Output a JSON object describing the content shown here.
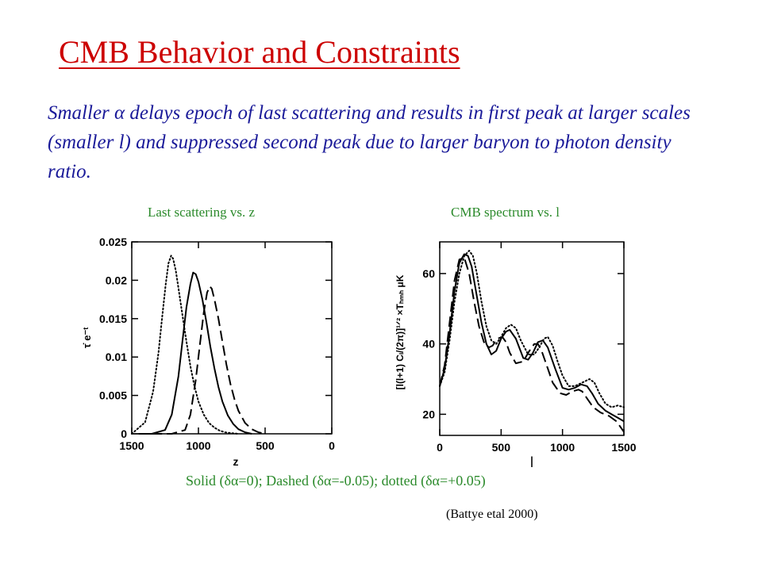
{
  "slide": {
    "title": "CMB Behavior and Constraints",
    "paragraph": "Smaller α delays epoch of last scattering and results in first peak at larger scales (smaller l) and suppressed second peak due to larger baryon to photon density ratio.",
    "caption_left": "Last scattering vs. z",
    "caption_right": "CMB spectrum vs. l",
    "legend_text": "Solid (δα=0); Dashed (δα=-0.05); dotted (δα=+0.05)",
    "source": "(Battye etal 2000)"
  },
  "chart_data": [
    {
      "type": "line",
      "title": "",
      "xlabel": "z",
      "ylabel": "τ̇ e⁻ᵗ",
      "xlim": [
        1500,
        0
      ],
      "ylim": [
        0,
        0.025
      ],
      "xticks": [
        "1500",
        "1000",
        "500",
        "0"
      ],
      "yticks": [
        "0",
        "0.005",
        "0.01",
        "0.015",
        "0.02",
        "0.025"
      ],
      "series": [
        {
          "style": "solid",
          "x": [
            1450,
            1350,
            1250,
            1200,
            1150,
            1120,
            1090,
            1060,
            1040,
            1020,
            1000,
            970,
            940,
            910,
            880,
            850,
            820,
            780,
            740,
            700,
            650,
            600
          ],
          "y": [
            0,
            0,
            0.0005,
            0.0025,
            0.0075,
            0.012,
            0.0165,
            0.0195,
            0.021,
            0.0208,
            0.0198,
            0.0175,
            0.0145,
            0.0113,
            0.0085,
            0.0061,
            0.0042,
            0.0024,
            0.0013,
            0.0006,
            0.0002,
            0
          ]
        },
        {
          "style": "dashed",
          "x": [
            1350,
            1200,
            1100,
            1060,
            1020,
            990,
            960,
            935,
            915,
            900,
            880,
            850,
            820,
            790,
            760,
            730,
            700,
            650,
            600,
            550,
            500
          ],
          "y": [
            0,
            0,
            0.0005,
            0.0025,
            0.007,
            0.0115,
            0.0158,
            0.0184,
            0.0192,
            0.0189,
            0.0175,
            0.015,
            0.012,
            0.009,
            0.0065,
            0.0045,
            0.003,
            0.0014,
            0.0006,
            0.0002,
            0
          ]
        },
        {
          "style": "dotted",
          "x": [
            1500,
            1400,
            1340,
            1300,
            1270,
            1245,
            1225,
            1205,
            1190,
            1170,
            1150,
            1120,
            1090,
            1060,
            1030,
            1000,
            960,
            920,
            880,
            840,
            800,
            760,
            700
          ],
          "y": [
            0,
            0.0015,
            0.0055,
            0.0105,
            0.0155,
            0.0195,
            0.0222,
            0.0232,
            0.0228,
            0.0213,
            0.019,
            0.0155,
            0.012,
            0.0088,
            0.0062,
            0.0042,
            0.0025,
            0.0014,
            0.0008,
            0.0004,
            0.0002,
            0.0001,
            0
          ]
        }
      ]
    },
    {
      "type": "line",
      "title": "",
      "xlabel": "l",
      "ylabel": "[l(l+1) Cₗ/(2π)]¹ᐟ² ×Tₕₘₕ μK",
      "xlim": [
        0,
        1500
      ],
      "ylim": [
        14,
        69
      ],
      "xticks": [
        "0",
        "500",
        "1000",
        "1500"
      ],
      "yticks": [
        "20",
        "40",
        "60"
      ],
      "series": [
        {
          "style": "solid",
          "x": [
            0,
            40,
            80,
            120,
            160,
            200,
            230,
            260,
            300,
            340,
            380,
            420,
            460,
            500,
            540,
            570,
            620,
            680,
            720,
            760,
            800,
            840,
            880,
            940,
            1000,
            1050,
            1100,
            1150,
            1200,
            1240,
            1290,
            1350,
            1400,
            1450,
            1500
          ],
          "y": [
            28,
            33,
            43,
            55,
            63,
            65.5,
            65,
            62,
            54,
            46,
            40,
            37,
            38,
            41.5,
            43.5,
            44,
            41.5,
            36,
            35.5,
            37.5,
            40.5,
            41,
            39,
            33,
            27.5,
            27,
            27.5,
            28.5,
            28,
            26,
            23,
            21,
            20,
            19,
            18
          ]
        },
        {
          "style": "dashed",
          "x": [
            0,
            40,
            80,
            120,
            160,
            200,
            240,
            280,
            320,
            360,
            400,
            430,
            470,
            510,
            540,
            570,
            620,
            680,
            730,
            770,
            800,
            830,
            870,
            920,
            980,
            1030,
            1080,
            1130,
            1160,
            1200,
            1250,
            1310,
            1380,
            1440,
            1500
          ],
          "y": [
            28,
            34,
            46,
            58,
            64,
            64.5,
            60,
            52,
            45,
            40.5,
            39,
            39.5,
            41.5,
            42,
            40.5,
            37.5,
            34.5,
            35,
            38,
            40,
            40,
            38,
            34,
            29,
            26,
            25.5,
            26.5,
            27,
            26.5,
            24.5,
            22,
            20.5,
            19.5,
            18,
            15
          ]
        },
        {
          "style": "dotted",
          "x": [
            0,
            40,
            80,
            120,
            160,
            200,
            240,
            270,
            300,
            340,
            380,
            420,
            460,
            500,
            540,
            580,
            620,
            660,
            720,
            770,
            810,
            850,
            880,
            920,
            960,
            1000,
            1050,
            1100,
            1160,
            1220,
            1260,
            1300,
            1350,
            1400,
            1450,
            1500
          ],
          "y": [
            28,
            32,
            41,
            52,
            60,
            65,
            66.5,
            65,
            60.5,
            52,
            45,
            41,
            40,
            42,
            44.5,
            45.5,
            44.5,
            41,
            37,
            37,
            39,
            41.5,
            42,
            39.5,
            35,
            31,
            28,
            28,
            29,
            30,
            29,
            26,
            23,
            22,
            22.5,
            22
          ]
        }
      ]
    }
  ]
}
